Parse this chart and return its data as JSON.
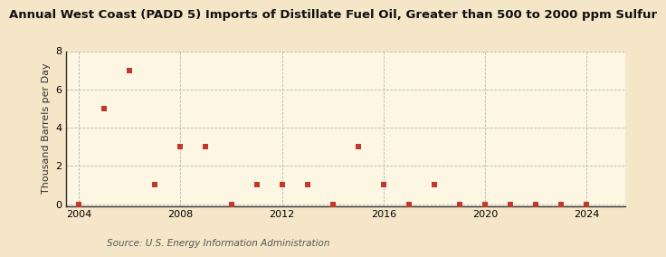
{
  "title": "Annual West Coast (PADD 5) Imports of Distillate Fuel Oil, Greater than 500 to 2000 ppm Sulfur",
  "ylabel": "Thousand Barrels per Day",
  "source": "Source: U.S. Energy Information Administration",
  "background_color": "#f5e6c8",
  "plot_background_color": "#fdf6e3",
  "data": {
    "2004": 0,
    "2005": 5,
    "2006": 7,
    "2007": 1,
    "2008": 3,
    "2009": 3,
    "2010": 0,
    "2011": 1,
    "2012": 1,
    "2013": 1,
    "2014": 0,
    "2015": 3,
    "2016": 1,
    "2017": 0,
    "2018": 1,
    "2019": 0,
    "2020": 0,
    "2021": 0,
    "2022": 0,
    "2023": 0,
    "2024": 0
  },
  "marker_color": "#c0392b",
  "marker": "s",
  "marker_size": 4,
  "xlim": [
    2003.5,
    2025.5
  ],
  "ylim": [
    -0.1,
    8
  ],
  "yticks": [
    0,
    2,
    4,
    6,
    8
  ],
  "xticks": [
    2004,
    2008,
    2012,
    2016,
    2020,
    2024
  ],
  "grid_color": "#b0b0b0",
  "grid_style": "--",
  "title_fontsize": 9.5,
  "label_fontsize": 8,
  "tick_fontsize": 8,
  "source_fontsize": 7.5
}
